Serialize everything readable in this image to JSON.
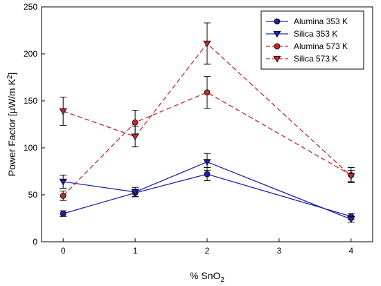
{
  "chart_data": {
    "type": "line",
    "xlabel": {
      "main": "% SnO",
      "sub": "2"
    },
    "ylabel": {
      "main": "Power Factor [μW/m K",
      "sup": "2",
      "end": "]"
    },
    "xlim": [
      -0.3,
      4.3
    ],
    "ylim": [
      0,
      250
    ],
    "xticks": [
      "0",
      "1",
      "2",
      "3",
      "4"
    ],
    "yticks": [
      "0",
      "50",
      "100",
      "150",
      "200",
      "250"
    ],
    "grid": false,
    "legend_position": "top-right",
    "series": [
      {
        "name": "Alumina 353 K",
        "color": "#1f1fa8",
        "marker": "circle",
        "dash": "solid",
        "x": [
          0,
          1,
          2,
          4
        ],
        "y": [
          30,
          52,
          72,
          27
        ],
        "err": [
          3,
          4,
          7,
          3
        ]
      },
      {
        "name": "Silica 353 K",
        "color": "#1f1fa8",
        "marker": "triangle-down",
        "dash": "solid",
        "x": [
          0,
          1,
          2,
          4
        ],
        "y": [
          64,
          53,
          85,
          24
        ],
        "err": [
          7,
          5,
          9,
          3
        ]
      },
      {
        "name": "Alumina 573 K",
        "color": "#c0282c",
        "marker": "circle",
        "dash": "dashed",
        "x": [
          0,
          1,
          2,
          4
        ],
        "y": [
          49,
          127,
          159,
          71
        ],
        "err": [
          5,
          13,
          17,
          8
        ]
      },
      {
        "name": "Silica 573 K",
        "color": "#c0282c",
        "marker": "triangle-down",
        "dash": "dashed",
        "x": [
          0,
          1,
          2,
          4
        ],
        "y": [
          139,
          112,
          211,
          70
        ],
        "err": [
          15,
          11,
          22,
          6
        ]
      }
    ]
  }
}
